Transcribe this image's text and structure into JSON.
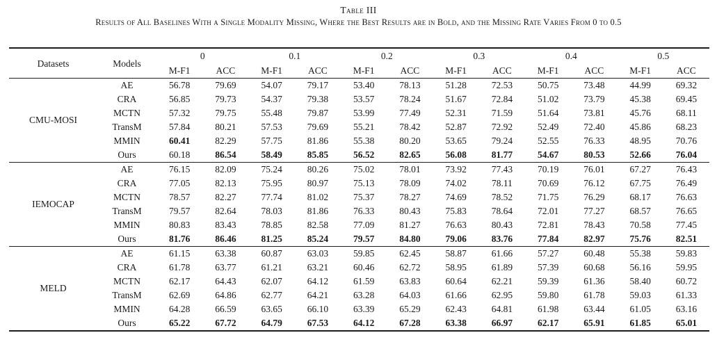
{
  "title": "Table III",
  "caption": "Results of All Baselines With a Single Modality Missing, Where the Best Results are in Bold, and the Missing Rate Varies From 0 to 0.5",
  "colors": {
    "text": "#1a1a1a",
    "rule": "#1c1c1c",
    "background": "#ffffff"
  },
  "table": {
    "header": {
      "datasets_label": "Datasets",
      "models_label": "Models",
      "missing_rates": [
        "0",
        "0.1",
        "0.2",
        "0.3",
        "0.4",
        "0.5"
      ],
      "metrics": [
        "M-F1",
        "ACC"
      ]
    },
    "groups": [
      {
        "dataset": "CMU-MOSI",
        "rows": [
          {
            "model": "AE",
            "values": [
              "56.78",
              "79.69",
              "54.07",
              "79.17",
              "53.40",
              "78.13",
              "51.28",
              "72.53",
              "50.75",
              "73.48",
              "44.99",
              "69.32"
            ],
            "bold": []
          },
          {
            "model": "CRA",
            "values": [
              "56.85",
              "79.73",
              "54.37",
              "79.38",
              "53.57",
              "78.24",
              "51.67",
              "72.84",
              "51.02",
              "73.79",
              "45.38",
              "69.45"
            ],
            "bold": []
          },
          {
            "model": "MCTN",
            "values": [
              "57.32",
              "79.75",
              "55.48",
              "79.87",
              "53.99",
              "77.49",
              "52.31",
              "71.59",
              "51.64",
              "73.81",
              "45.76",
              "68.11"
            ],
            "bold": []
          },
          {
            "model": "TransM",
            "values": [
              "57.84",
              "80.21",
              "57.53",
              "79.69",
              "55.21",
              "78.42",
              "52.87",
              "72.92",
              "52.49",
              "72.40",
              "45.86",
              "68.23"
            ],
            "bold": []
          },
          {
            "model": "MMIN",
            "values": [
              "60.41",
              "82.29",
              "57.75",
              "81.86",
              "55.38",
              "80.20",
              "53.65",
              "79.24",
              "52.55",
              "76.33",
              "48.95",
              "70.76"
            ],
            "bold": [
              0
            ]
          },
          {
            "model": "Ours",
            "values": [
              "60.18",
              "86.54",
              "58.49",
              "85.85",
              "56.52",
              "82.65",
              "56.08",
              "81.77",
              "54.67",
              "80.53",
              "52.66",
              "76.04"
            ],
            "bold": [
              1,
              2,
              3,
              4,
              5,
              6,
              7,
              8,
              9,
              10,
              11
            ]
          }
        ]
      },
      {
        "dataset": "IEMOCAP",
        "rows": [
          {
            "model": "AE",
            "values": [
              "76.15",
              "82.09",
              "75.24",
              "80.26",
              "75.02",
              "78.01",
              "73.92",
              "77.43",
              "70.19",
              "76.01",
              "67.27",
              "76.43"
            ],
            "bold": []
          },
          {
            "model": "CRA",
            "values": [
              "77.05",
              "82.13",
              "75.95",
              "80.97",
              "75.13",
              "78.09",
              "74.02",
              "78.11",
              "70.69",
              "76.12",
              "67.75",
              "76.49"
            ],
            "bold": []
          },
          {
            "model": "MCTN",
            "values": [
              "78.57",
              "82.27",
              "77.74",
              "81.02",
              "75.37",
              "78.27",
              "74.69",
              "78.52",
              "71.75",
              "76.29",
              "68.17",
              "76.63"
            ],
            "bold": []
          },
          {
            "model": "TransM",
            "values": [
              "79.57",
              "82.64",
              "78.03",
              "81.86",
              "76.33",
              "80.43",
              "75.83",
              "78.64",
              "72.01",
              "77.27",
              "68.57",
              "76.65"
            ],
            "bold": []
          },
          {
            "model": "MMIN",
            "values": [
              "80.83",
              "83.43",
              "78.85",
              "82.58",
              "77.09",
              "81.27",
              "76.63",
              "80.43",
              "72.81",
              "78.43",
              "70.58",
              "77.45"
            ],
            "bold": []
          },
          {
            "model": "Ours",
            "values": [
              "81.76",
              "86.46",
              "81.25",
              "85.24",
              "79.57",
              "84.80",
              "79.06",
              "83.76",
              "77.84",
              "82.97",
              "75.76",
              "82.51"
            ],
            "bold": [
              0,
              1,
              2,
              3,
              4,
              5,
              6,
              7,
              8,
              9,
              10,
              11
            ]
          }
        ]
      },
      {
        "dataset": "MELD",
        "rows": [
          {
            "model": "AE",
            "values": [
              "61.15",
              "63.38",
              "60.87",
              "63.03",
              "59.85",
              "62.45",
              "58.87",
              "61.66",
              "57.27",
              "60.48",
              "55.38",
              "59.83"
            ],
            "bold": []
          },
          {
            "model": "CRA",
            "values": [
              "61.78",
              "63.77",
              "61.21",
              "63.21",
              "60.46",
              "62.72",
              "58.95",
              "61.89",
              "57.39",
              "60.68",
              "56.16",
              "59.95"
            ],
            "bold": []
          },
          {
            "model": "MCTN",
            "values": [
              "62.17",
              "64.43",
              "62.07",
              "64.12",
              "61.59",
              "63.83",
              "60.64",
              "62.21",
              "59.39",
              "61.36",
              "58.40",
              "60.72"
            ],
            "bold": []
          },
          {
            "model": "TransM",
            "values": [
              "62.69",
              "64.86",
              "62.77",
              "64.21",
              "63.28",
              "64.03",
              "61.66",
              "62.95",
              "59.80",
              "61.78",
              "59.03",
              "61.33"
            ],
            "bold": []
          },
          {
            "model": "MMIN",
            "values": [
              "64.28",
              "66.59",
              "63.65",
              "66.10",
              "63.39",
              "65.29",
              "62.43",
              "64.81",
              "61.98",
              "63.44",
              "61.05",
              "63.16"
            ],
            "bold": []
          },
          {
            "model": "Ours",
            "values": [
              "65.22",
              "67.72",
              "64.79",
              "67.53",
              "64.12",
              "67.28",
              "63.38",
              "66.97",
              "62.17",
              "65.91",
              "61.85",
              "65.01"
            ],
            "bold": [
              0,
              1,
              2,
              3,
              4,
              5,
              6,
              7,
              8,
              9,
              10,
              11
            ]
          }
        ]
      }
    ]
  }
}
